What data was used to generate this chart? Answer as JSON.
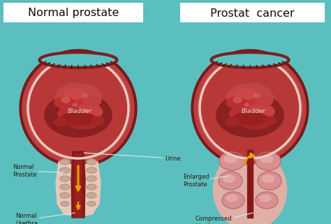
{
  "bg_color": "#5bbfbf",
  "title_left": "Normal prostate",
  "title_right": "Prostat  cancer",
  "title_fontsize": 11.5,
  "label_color": "#2a1a0a",
  "bladder_label": "Bladder",
  "urine_label": "Urine",
  "normal_prostate_label": "Normal\nProstate",
  "normal_urethra_label": "Normal\nUrethra",
  "enlarged_prostate_label": "Enlarged\nProstate",
  "compressed_urethra_label": "Compressed\nUrethra",
  "c_outer": "#7a1818",
  "c_outer2": "#a03030",
  "c_inner_wall": "#c84848",
  "c_interior": "#b83838",
  "c_rugae": "#8a2020",
  "c_highlight": "#d06060",
  "c_white_border": "#e8ccc0",
  "c_top_open": "#5bbfbf",
  "c_neck": "#8a1818",
  "c_prostate_tissue": "#e8c8b8",
  "c_prostate_stripe": "#c8a898",
  "c_urethra_inner": "#9a2020",
  "c_arrow": "#e8a000",
  "c_lobe": "#d89090",
  "c_lobe_dark": "#c07070",
  "c_lobe_bg": "#e0b0a8",
  "c_line": "#c8e8e8",
  "text_bladder": "#e8d8c8",
  "label_fs": 6.0,
  "bladder_fs": 6.5
}
